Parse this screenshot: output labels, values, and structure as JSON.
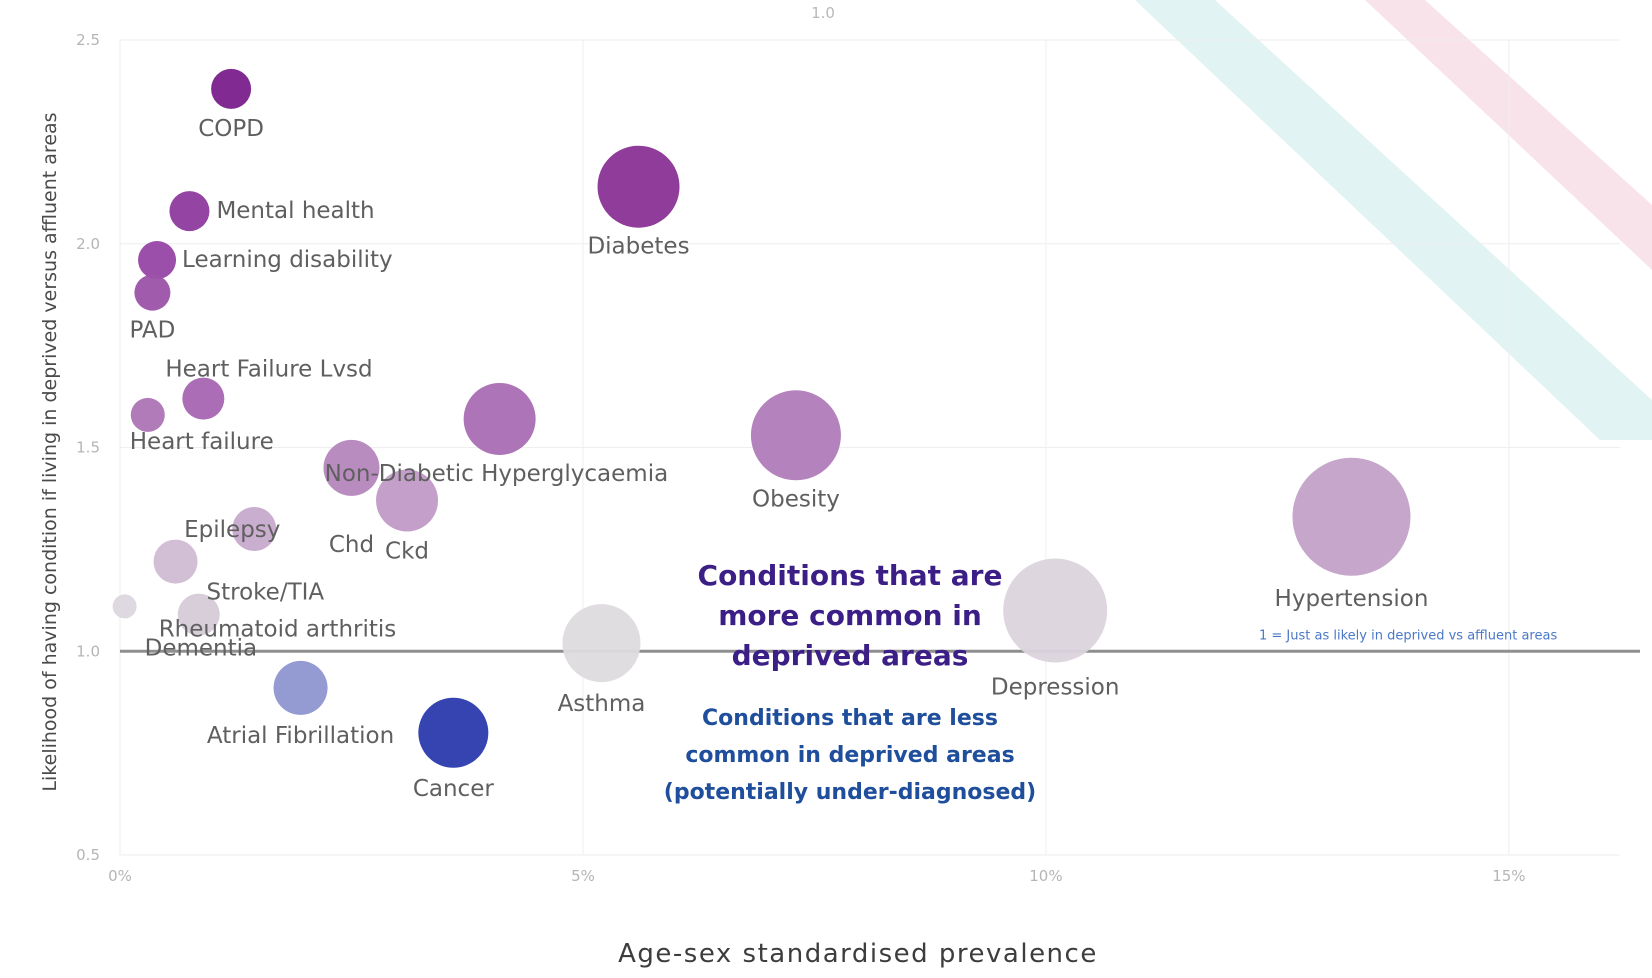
{
  "chart_data": {
    "type": "scatter",
    "title": "",
    "top_label": "1.0",
    "xlabel": "Age-sex standardised prevalence",
    "ylabel": "Likelihood of having condition if living in deprived versus affluent areas",
    "xlim": [
      0,
      16.2
    ],
    "ylim": [
      0.5,
      2.5
    ],
    "x_ticks": [
      {
        "value": 0,
        "label": "0%"
      },
      {
        "value": 5,
        "label": "5%"
      },
      {
        "value": 10,
        "label": "10%"
      },
      {
        "value": 15,
        "label": "15%"
      }
    ],
    "y_ticks": [
      {
        "value": 0.5,
        "label": "0.5"
      },
      {
        "value": 1.0,
        "label": "1.0"
      },
      {
        "value": 1.5,
        "label": "1.5"
      },
      {
        "value": 2.0,
        "label": "2.0"
      },
      {
        "value": 2.5,
        "label": "2.5"
      }
    ],
    "grid": true,
    "reference_line": {
      "y": 1.0,
      "label": "1 = Just as likely in deprived vs affluent areas"
    },
    "points": [
      {
        "name": "COPD",
        "x": 1.2,
        "y": 2.38,
        "color": "#7a1f8c"
      },
      {
        "name": "Mental health",
        "x": 0.75,
        "y": 2.08,
        "color": "#8e3a9e"
      },
      {
        "name": "Learning disability",
        "x": 0.4,
        "y": 1.96,
        "color": "#9646a5"
      },
      {
        "name": "PAD",
        "x": 0.35,
        "y": 1.88,
        "color": "#9c52a8"
      },
      {
        "name": "Diabetes",
        "x": 5.6,
        "y": 2.14,
        "color": "#8a3295"
      },
      {
        "name": "Heart Failure Lvsd",
        "x": 0.9,
        "y": 1.62,
        "color": "#a665b1"
      },
      {
        "name": "Heart failure",
        "x": 0.3,
        "y": 1.58,
        "color": "#ad74b6"
      },
      {
        "name": "Non-Diabetic Hyperglycaemia",
        "x": 4.1,
        "y": 1.57,
        "color": "#a96db3"
      },
      {
        "name": "Obesity",
        "x": 7.3,
        "y": 1.53,
        "color": "#b07bb8"
      },
      {
        "name": "Chd",
        "x": 2.5,
        "y": 1.45,
        "color": "#b586bd"
      },
      {
        "name": "Ckd",
        "x": 3.1,
        "y": 1.37,
        "color": "#c09ac6"
      },
      {
        "name": "Hypertension",
        "x": 13.3,
        "y": 1.33,
        "color": "#c3a1c8"
      },
      {
        "name": "Epilepsy",
        "x": 1.45,
        "y": 1.3,
        "color": "#c7aacc"
      },
      {
        "name": "Stroke/TIA",
        "x": 0.6,
        "y": 1.22,
        "color": "#d0bcd3"
      },
      {
        "name": "Rheumatoid arthritis",
        "x": 0.85,
        "y": 1.09,
        "color": "#d5cbd8"
      },
      {
        "name": "Dementia",
        "x": 0.05,
        "y": 1.11,
        "color": "#dcd6de"
      },
      {
        "name": "Depression",
        "x": 10.1,
        "y": 1.1,
        "color": "#dcd4dd"
      },
      {
        "name": "Asthma",
        "x": 5.2,
        "y": 1.02,
        "color": "#dedbdf"
      },
      {
        "name": "Atrial Fibrillation",
        "x": 1.95,
        "y": 0.91,
        "color": "#8e95d0"
      },
      {
        "name": "Cancer",
        "x": 3.6,
        "y": 0.8,
        "color": "#2a3aad"
      }
    ],
    "annotations": [
      "Conditions that are more common in deprived areas",
      "Conditions that are less common in deprived areas (potentially under-diagnosed)"
    ]
  },
  "notes": {
    "more_lines": [
      "Conditions that are",
      "more common in",
      "deprived areas"
    ],
    "less_lines": [
      "Conditions that are less",
      "common in deprived areas",
      "(potentially under-diagnosed)"
    ]
  }
}
